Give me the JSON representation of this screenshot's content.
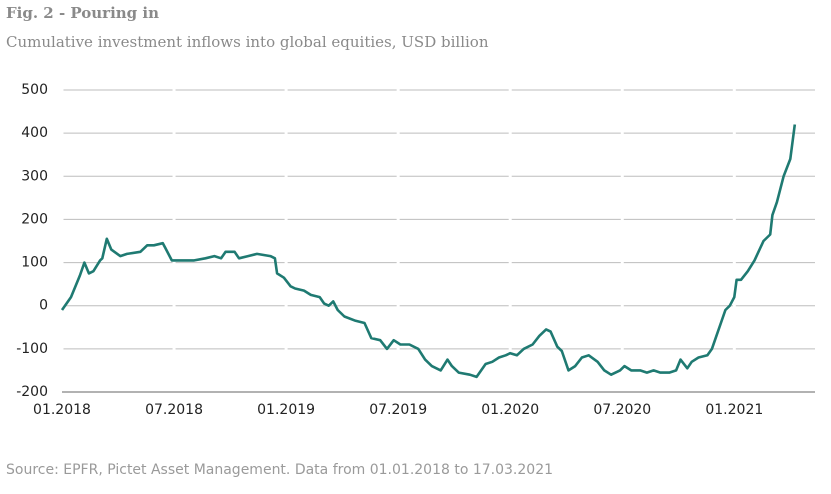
{
  "chart_data": {
    "type": "line",
    "title": "Fig. 2 - Pouring in",
    "subtitle": "Cumulative investment inflows into global equities, USD billion",
    "source": "Source: EPFR, Pictet Asset Management. Data from 01.01.2018 to 17.03.2021",
    "x": [
      2018.0,
      2018.04,
      2018.08,
      2018.1,
      2018.12,
      2018.14,
      2018.17,
      2018.18,
      2018.2,
      2018.22,
      2018.26,
      2018.29,
      2018.35,
      2018.38,
      2018.41,
      2018.45,
      2018.46,
      2018.49,
      2018.55,
      2018.59,
      2018.64,
      2018.68,
      2018.71,
      2018.73,
      2018.77,
      2018.79,
      2018.83,
      2018.87,
      2018.93,
      2018.95,
      2018.96,
      2018.99,
      2019.02,
      2019.04,
      2019.08,
      2019.11,
      2019.15,
      2019.17,
      2019.19,
      2019.21,
      2019.23,
      2019.26,
      2019.31,
      2019.35,
      2019.38,
      2019.42,
      2019.45,
      2019.48,
      2019.51,
      2019.55,
      2019.59,
      2019.62,
      2019.65,
      2019.69,
      2019.72,
      2019.74,
      2019.77,
      2019.82,
      2019.85,
      2019.89,
      2019.92,
      2019.95,
      2019.98,
      2020.0,
      2020.03,
      2020.06,
      2020.1,
      2020.13,
      2020.16,
      2020.18,
      2020.21,
      2020.23,
      2020.26,
      2020.29,
      2020.32,
      2020.35,
      2020.39,
      2020.42,
      2020.45,
      2020.49,
      2020.51,
      2020.54,
      2020.58,
      2020.61,
      2020.64,
      2020.67,
      2020.71,
      2020.74,
      2020.76,
      2020.79,
      2020.81,
      2020.84,
      2020.88,
      2020.9,
      2020.92,
      2020.94,
      2020.96,
      2020.98,
      2021.0,
      2021.01,
      2021.03,
      2021.06,
      2021.09,
      2021.13,
      2021.16,
      2021.17,
      2021.19,
      2021.22,
      2021.25,
      2021.27
    ],
    "series": [
      {
        "name": "Cumulative inflows",
        "color": "#1f7a72",
        "values": [
          -10,
          20,
          70,
          100,
          75,
          80,
          105,
          110,
          155,
          130,
          115,
          120,
          125,
          140,
          140,
          145,
          135,
          105,
          105,
          105,
          110,
          115,
          110,
          125,
          125,
          110,
          115,
          120,
          115,
          110,
          75,
          65,
          45,
          40,
          35,
          25,
          20,
          5,
          0,
          10,
          -10,
          -25,
          -35,
          -40,
          -75,
          -80,
          -100,
          -80,
          -90,
          -90,
          -100,
          -125,
          -140,
          -150,
          -125,
          -140,
          -155,
          -160,
          -165,
          -135,
          -130,
          -120,
          -115,
          -110,
          -115,
          -100,
          -90,
          -70,
          -55,
          -60,
          -95,
          -105,
          -150,
          -140,
          -120,
          -115,
          -130,
          -150,
          -160,
          -150,
          -140,
          -150,
          -150,
          -155,
          -150,
          -155,
          -155,
          -150,
          -125,
          -145,
          -130,
          -120,
          -115,
          -100,
          -70,
          -40,
          -10,
          0,
          20,
          60,
          60,
          80,
          105,
          150,
          165,
          210,
          240,
          300,
          340,
          420
        ]
      }
    ],
    "xlim": [
      2018,
      2021.36
    ],
    "xticks": [
      {
        "value": 2018,
        "label": "01.2018"
      },
      {
        "value": 2018.5,
        "label": "07.2018"
      },
      {
        "value": 2019,
        "label": "01.2019"
      },
      {
        "value": 2019.5,
        "label": "07.2019"
      },
      {
        "value": 2020,
        "label": "01.2020"
      },
      {
        "value": 2020.5,
        "label": "07.2020"
      },
      {
        "value": 2021,
        "label": "01.2021"
      }
    ],
    "ylim": [
      -200,
      500
    ],
    "yticks": [
      -200,
      -100,
      0,
      100,
      200,
      300,
      400,
      500
    ],
    "grid": true
  }
}
